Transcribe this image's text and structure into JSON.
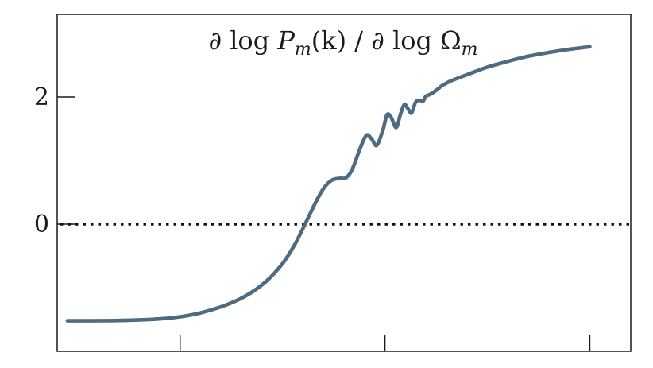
{
  "chart_data": {
    "type": "line",
    "title": "∂ log P_m(k) / ∂ log Ω_m",
    "title_parts": {
      "prefix": "∂ log ",
      "p_symbol": "P",
      "p_subscript": "m",
      "argument": "(k) / ∂ log ",
      "omega_symbol": "Ω",
      "omega_subscript": "m"
    },
    "xlabel": "",
    "ylabel": "",
    "xlim": [
      0,
      2.8
    ],
    "ylim": [
      -2.0,
      3.3
    ],
    "x_ticks": [
      {
        "value": 0.6,
        "label": ""
      },
      {
        "value": 1.6,
        "label": ""
      },
      {
        "value": 2.6,
        "label": ""
      }
    ],
    "y_ticks": [
      {
        "value": 0,
        "label": "0"
      },
      {
        "value": 2,
        "label": "2"
      }
    ],
    "reference_line": {
      "y": 0,
      "style": "dotted",
      "color": "#111111"
    },
    "grid": false,
    "legend": "none",
    "series": [
      {
        "color": "#4e6b82",
        "points": [
          [
            0.05,
            -1.52
          ],
          [
            0.3,
            -1.515
          ],
          [
            0.5,
            -1.49
          ],
          [
            0.65,
            -1.43
          ],
          [
            0.8,
            -1.3
          ],
          [
            0.92,
            -1.13
          ],
          [
            1.02,
            -0.9
          ],
          [
            1.1,
            -0.62
          ],
          [
            1.16,
            -0.32
          ],
          [
            1.21,
            0.0
          ],
          [
            1.26,
            0.33
          ],
          [
            1.3,
            0.56
          ],
          [
            1.34,
            0.69
          ],
          [
            1.38,
            0.72
          ],
          [
            1.41,
            0.73
          ],
          [
            1.44,
            0.86
          ],
          [
            1.48,
            1.2
          ],
          [
            1.51,
            1.4
          ],
          [
            1.535,
            1.34
          ],
          [
            1.56,
            1.24
          ],
          [
            1.59,
            1.48
          ],
          [
            1.61,
            1.72
          ],
          [
            1.63,
            1.68
          ],
          [
            1.655,
            1.52
          ],
          [
            1.675,
            1.72
          ],
          [
            1.695,
            1.88
          ],
          [
            1.715,
            1.8
          ],
          [
            1.73,
            1.75
          ],
          [
            1.75,
            1.92
          ],
          [
            1.77,
            1.95
          ],
          [
            1.785,
            1.93
          ],
          [
            1.8,
            2.01
          ],
          [
            1.82,
            2.04
          ],
          [
            1.84,
            2.08
          ],
          [
            1.86,
            2.13
          ],
          [
            1.88,
            2.18
          ],
          [
            1.92,
            2.25
          ],
          [
            2.0,
            2.35
          ],
          [
            2.1,
            2.47
          ],
          [
            2.2,
            2.56
          ],
          [
            2.3,
            2.64
          ],
          [
            2.4,
            2.7
          ],
          [
            2.5,
            2.75
          ],
          [
            2.6,
            2.79
          ]
        ]
      }
    ]
  }
}
